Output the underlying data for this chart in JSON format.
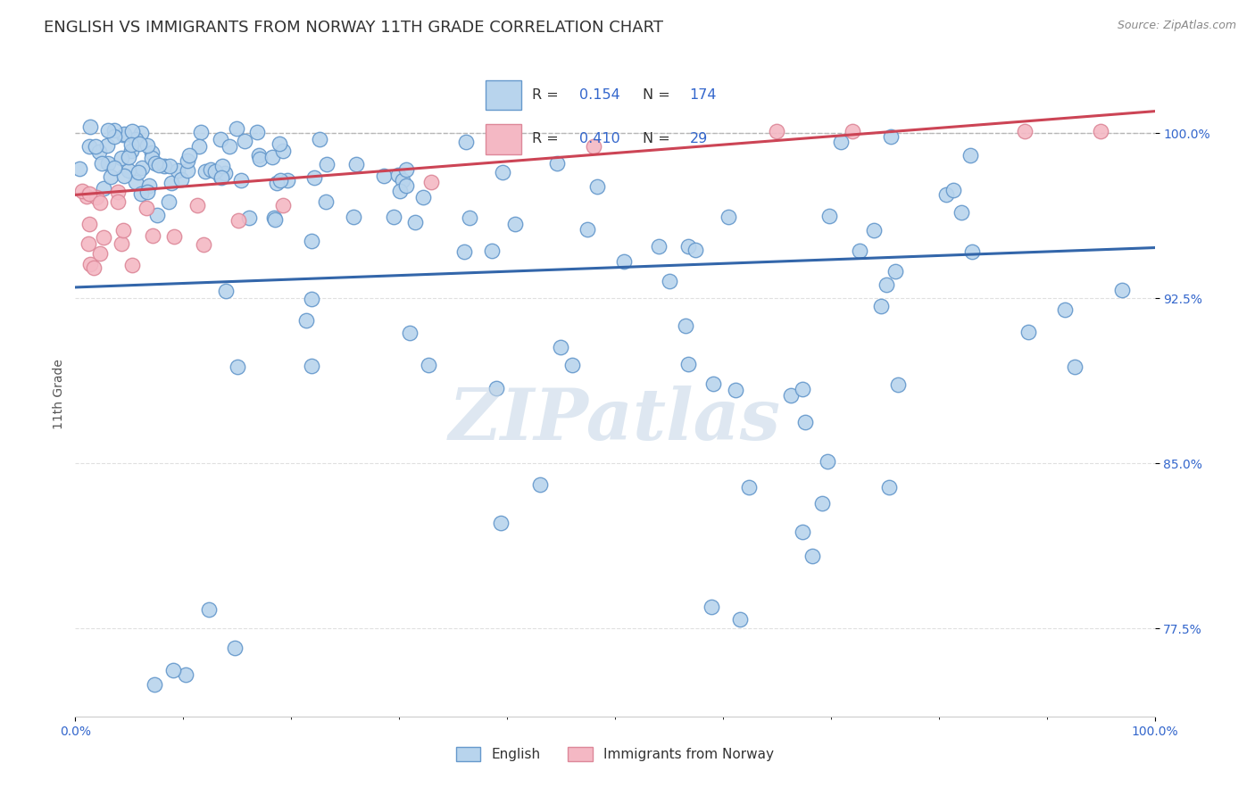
{
  "title": "ENGLISH VS IMMIGRANTS FROM NORWAY 11TH GRADE CORRELATION CHART",
  "source_text": "Source: ZipAtlas.com",
  "ylabel": "11th Grade",
  "x_min": 0.0,
  "x_max": 1.0,
  "y_min": 0.735,
  "y_max": 1.028,
  "yticks": [
    0.775,
    0.85,
    0.925,
    1.0
  ],
  "ytick_labels": [
    "77.5%",
    "85.0%",
    "92.5%",
    "100.0%"
  ],
  "blue_color": "#b8d4ed",
  "pink_color": "#f4b8c4",
  "blue_edge": "#6699cc",
  "pink_edge": "#dd8899",
  "blue_line_color": "#3366aa",
  "pink_line_color": "#cc4455",
  "r_blue": 0.154,
  "n_blue": 174,
  "r_pink": 0.41,
  "n_pink": 29,
  "dashed_line_y": 1.0,
  "watermark": "ZIPatlas",
  "watermark_color": "#c8d8e8",
  "background_color": "#ffffff",
  "grid_color": "#e0e0e0",
  "legend_label_blue": "English",
  "legend_label_pink": "Immigrants from Norway",
  "legend_text_color": "#3366cc",
  "title_fontsize": 13,
  "axis_fontsize": 10,
  "legend_fontsize": 11,
  "blue_line_start_y": 0.93,
  "blue_line_end_y": 0.948,
  "pink_line_start_y": 0.972,
  "pink_line_end_y": 1.01
}
